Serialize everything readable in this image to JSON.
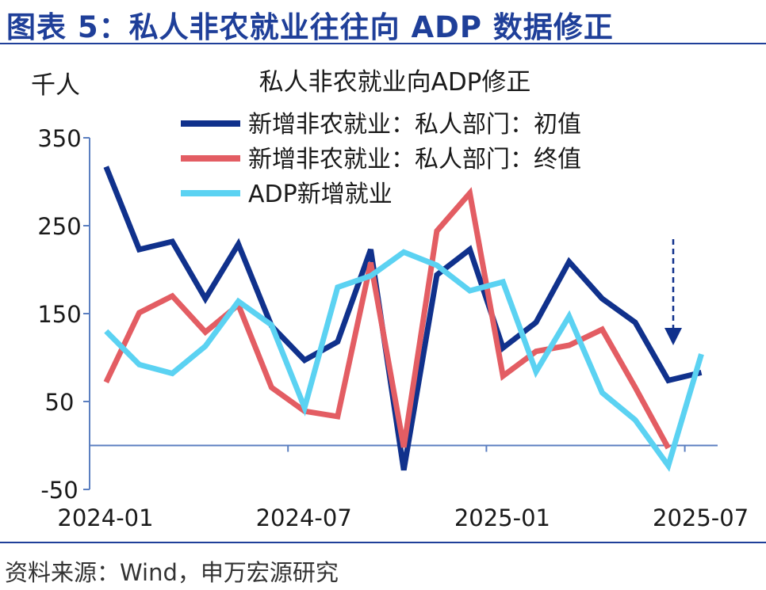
{
  "figure_title": "图表 5：私人非农就业往往向 ADP 数据修正",
  "source": "资料来源：Wind，申万宏源研究",
  "colors": {
    "initial": "#10318c",
    "final": "#e35d63",
    "adp": "#5bd2f2",
    "axis": "#5b7fc0",
    "annotation": "#10318c"
  },
  "chart_data": {
    "type": "line",
    "title": "私人非农就业向ADP修正",
    "ylabel": "千人",
    "xlabel": "",
    "ylim": [
      -50,
      350
    ],
    "yticks": [
      350,
      250,
      150,
      50,
      -50
    ],
    "x": [
      "2024-01",
      "2024-02",
      "2024-03",
      "2024-04",
      "2024-05",
      "2024-06",
      "2024-07",
      "2024-08",
      "2024-09",
      "2024-10",
      "2024-11",
      "2024-12",
      "2025-01",
      "2025-02",
      "2025-03",
      "2025-04",
      "2025-05",
      "2025-06",
      "2025-07"
    ],
    "xtick_labels": [
      "2024-01",
      "2024-07",
      "2025-01",
      "2025-07"
    ],
    "grid": false,
    "legend_position": "top",
    "series": [
      {
        "name": "新增非农就业：私人部门：初值",
        "color_key": "initial",
        "values": [
          317,
          223,
          232,
          167,
          229,
          136,
          97,
          118,
          223,
          -28,
          194,
          223,
          111,
          140,
          209,
          167,
          140,
          74,
          83
        ]
      },
      {
        "name": "新增非农就业：私人部门：终值",
        "color_key": "final",
        "values": [
          72,
          151,
          170,
          129,
          160,
          66,
          39,
          33,
          208,
          -2,
          244,
          287,
          79,
          107,
          114,
          132,
          66,
          -3,
          null
        ]
      },
      {
        "name": "ADP新增就业",
        "color_key": "adp",
        "values": [
          130,
          92,
          82,
          113,
          164,
          137,
          43,
          180,
          193,
          220,
          205,
          176,
          186,
          84,
          147,
          60,
          29,
          -23,
          104
        ]
      }
    ],
    "annotation": "downward dashed arrow at 2025-06"
  }
}
